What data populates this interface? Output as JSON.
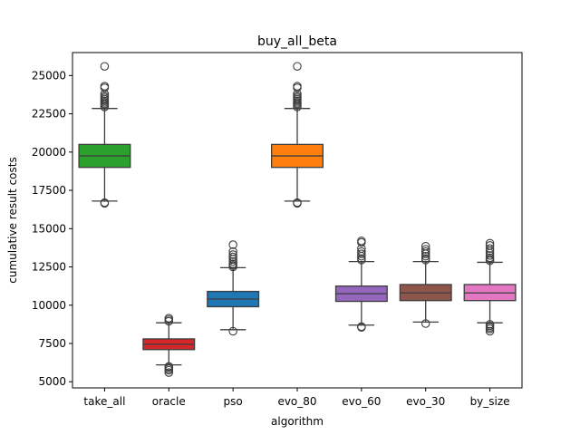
{
  "chart_data": {
    "type": "box",
    "title": "buy_all_beta",
    "xlabel": "algorithm",
    "ylabel": "cumulative result costs",
    "ylim": [
      4600,
      26500
    ],
    "yticks": [
      5000,
      7500,
      10000,
      12500,
      15000,
      17500,
      20000,
      22500,
      25000
    ],
    "ytick_labels": [
      "5000",
      "7500",
      "10000",
      "12500",
      "15000",
      "17500",
      "20000",
      "22500",
      "25000"
    ],
    "grid": false,
    "categories": [
      "take_all",
      "oracle",
      "pso",
      "evo_80",
      "evo_60",
      "evo_30",
      "by_size"
    ],
    "boxes": [
      {
        "name": "take_all",
        "color": "#2ca02c",
        "whisker_low": 16800,
        "q1": 19000,
        "median": 19750,
        "q3": 20500,
        "whisker_high": 22850,
        "outliers": [
          16650,
          16700,
          22950,
          23050,
          23150,
          23250,
          23350,
          23450,
          23550,
          23650,
          23800,
          24200,
          24300,
          25600
        ]
      },
      {
        "name": "oracle",
        "color": "#d62728",
        "whisker_low": 6100,
        "q1": 7100,
        "median": 7450,
        "q3": 7800,
        "whisker_high": 8850,
        "outliers": [
          5600,
          5750,
          5850,
          5950,
          6000,
          8950,
          9050,
          9150
        ]
      },
      {
        "name": "pso",
        "color": "#1f77b4",
        "whisker_low": 8400,
        "q1": 9900,
        "median": 10400,
        "q3": 10900,
        "whisker_high": 12450,
        "outliers": [
          8300,
          12500,
          12600,
          12700,
          12850,
          13000,
          13150,
          13300,
          13500,
          13950
        ]
      },
      {
        "name": "evo_80",
        "color": "#ff7f0e",
        "whisker_low": 16800,
        "q1": 19000,
        "median": 19750,
        "q3": 20500,
        "whisker_high": 22850,
        "outliers": [
          16650,
          16700,
          22950,
          23050,
          23150,
          23250,
          23350,
          23450,
          23550,
          23650,
          23800,
          24200,
          24300,
          25600
        ]
      },
      {
        "name": "evo_60",
        "color": "#9467bd",
        "whisker_low": 8700,
        "q1": 10250,
        "median": 10750,
        "q3": 11250,
        "whisker_high": 12850,
        "outliers": [
          8550,
          8600,
          12950,
          13050,
          13200,
          13350,
          13500,
          13700,
          14100,
          14200
        ]
      },
      {
        "name": "evo_30",
        "color": "#8c564b",
        "whisker_low": 8900,
        "q1": 10300,
        "median": 10800,
        "q3": 11350,
        "whisker_high": 12850,
        "outliers": [
          8800,
          12950,
          13050,
          13200,
          13350,
          13500,
          13650,
          13850
        ]
      },
      {
        "name": "by_size",
        "color": "#e377c2",
        "whisker_low": 8850,
        "q1": 10300,
        "median": 10800,
        "q3": 11350,
        "whisker_high": 12800,
        "outliers": [
          8300,
          8450,
          8550,
          8650,
          8750,
          12900,
          13000,
          13100,
          13250,
          13400,
          13550,
          13700,
          13900,
          14050
        ]
      }
    ]
  }
}
